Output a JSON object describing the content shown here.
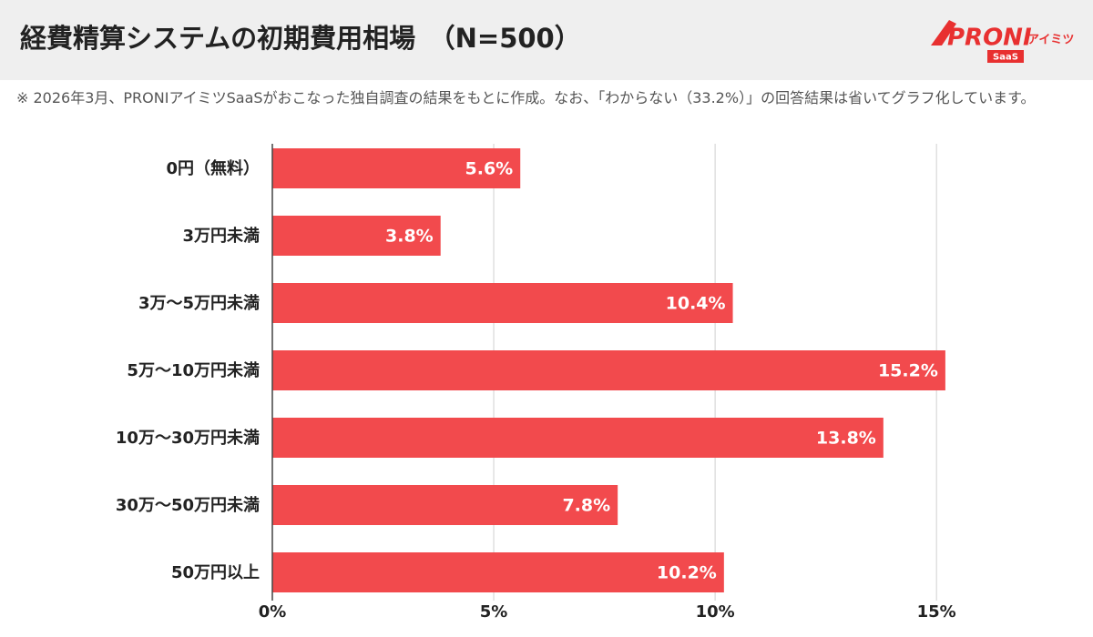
{
  "chart_data": {
    "type": "bar",
    "orientation": "horizontal",
    "title": "経費精算システムの初期費用相場　（N=500）",
    "note": "※ 2026年3月、PRONIアイミツSaaSがおこなった独自調査の結果をもとに作成。なお、「わからない（33.2%）」の回答結果は省いてグラフ化しています。",
    "categories": [
      "0円（無料）",
      "3万円未満",
      "3万〜5万円未満",
      "5万〜10万円未満",
      "10万〜30万円未満",
      "30万〜50万円未満",
      "50万円以上"
    ],
    "values": [
      5.6,
      3.8,
      10.4,
      15.2,
      13.8,
      7.8,
      10.2
    ],
    "value_labels": [
      "5.6%",
      "3.8%",
      "10.4%",
      "15.2%",
      "13.8%",
      "7.8%",
      "10.2%"
    ],
    "color": "#f24a4d",
    "xlim": [
      0,
      18
    ],
    "xticks": [
      {
        "value": 0,
        "label": "0%"
      },
      {
        "value": 5,
        "label": "5%"
      },
      {
        "value": 10,
        "label": "10%"
      },
      {
        "value": 15,
        "label": "15%"
      }
    ],
    "grid": true
  },
  "logo": {
    "brand": "PRONI",
    "sub": "アイミツ",
    "badge": "SaaS"
  }
}
